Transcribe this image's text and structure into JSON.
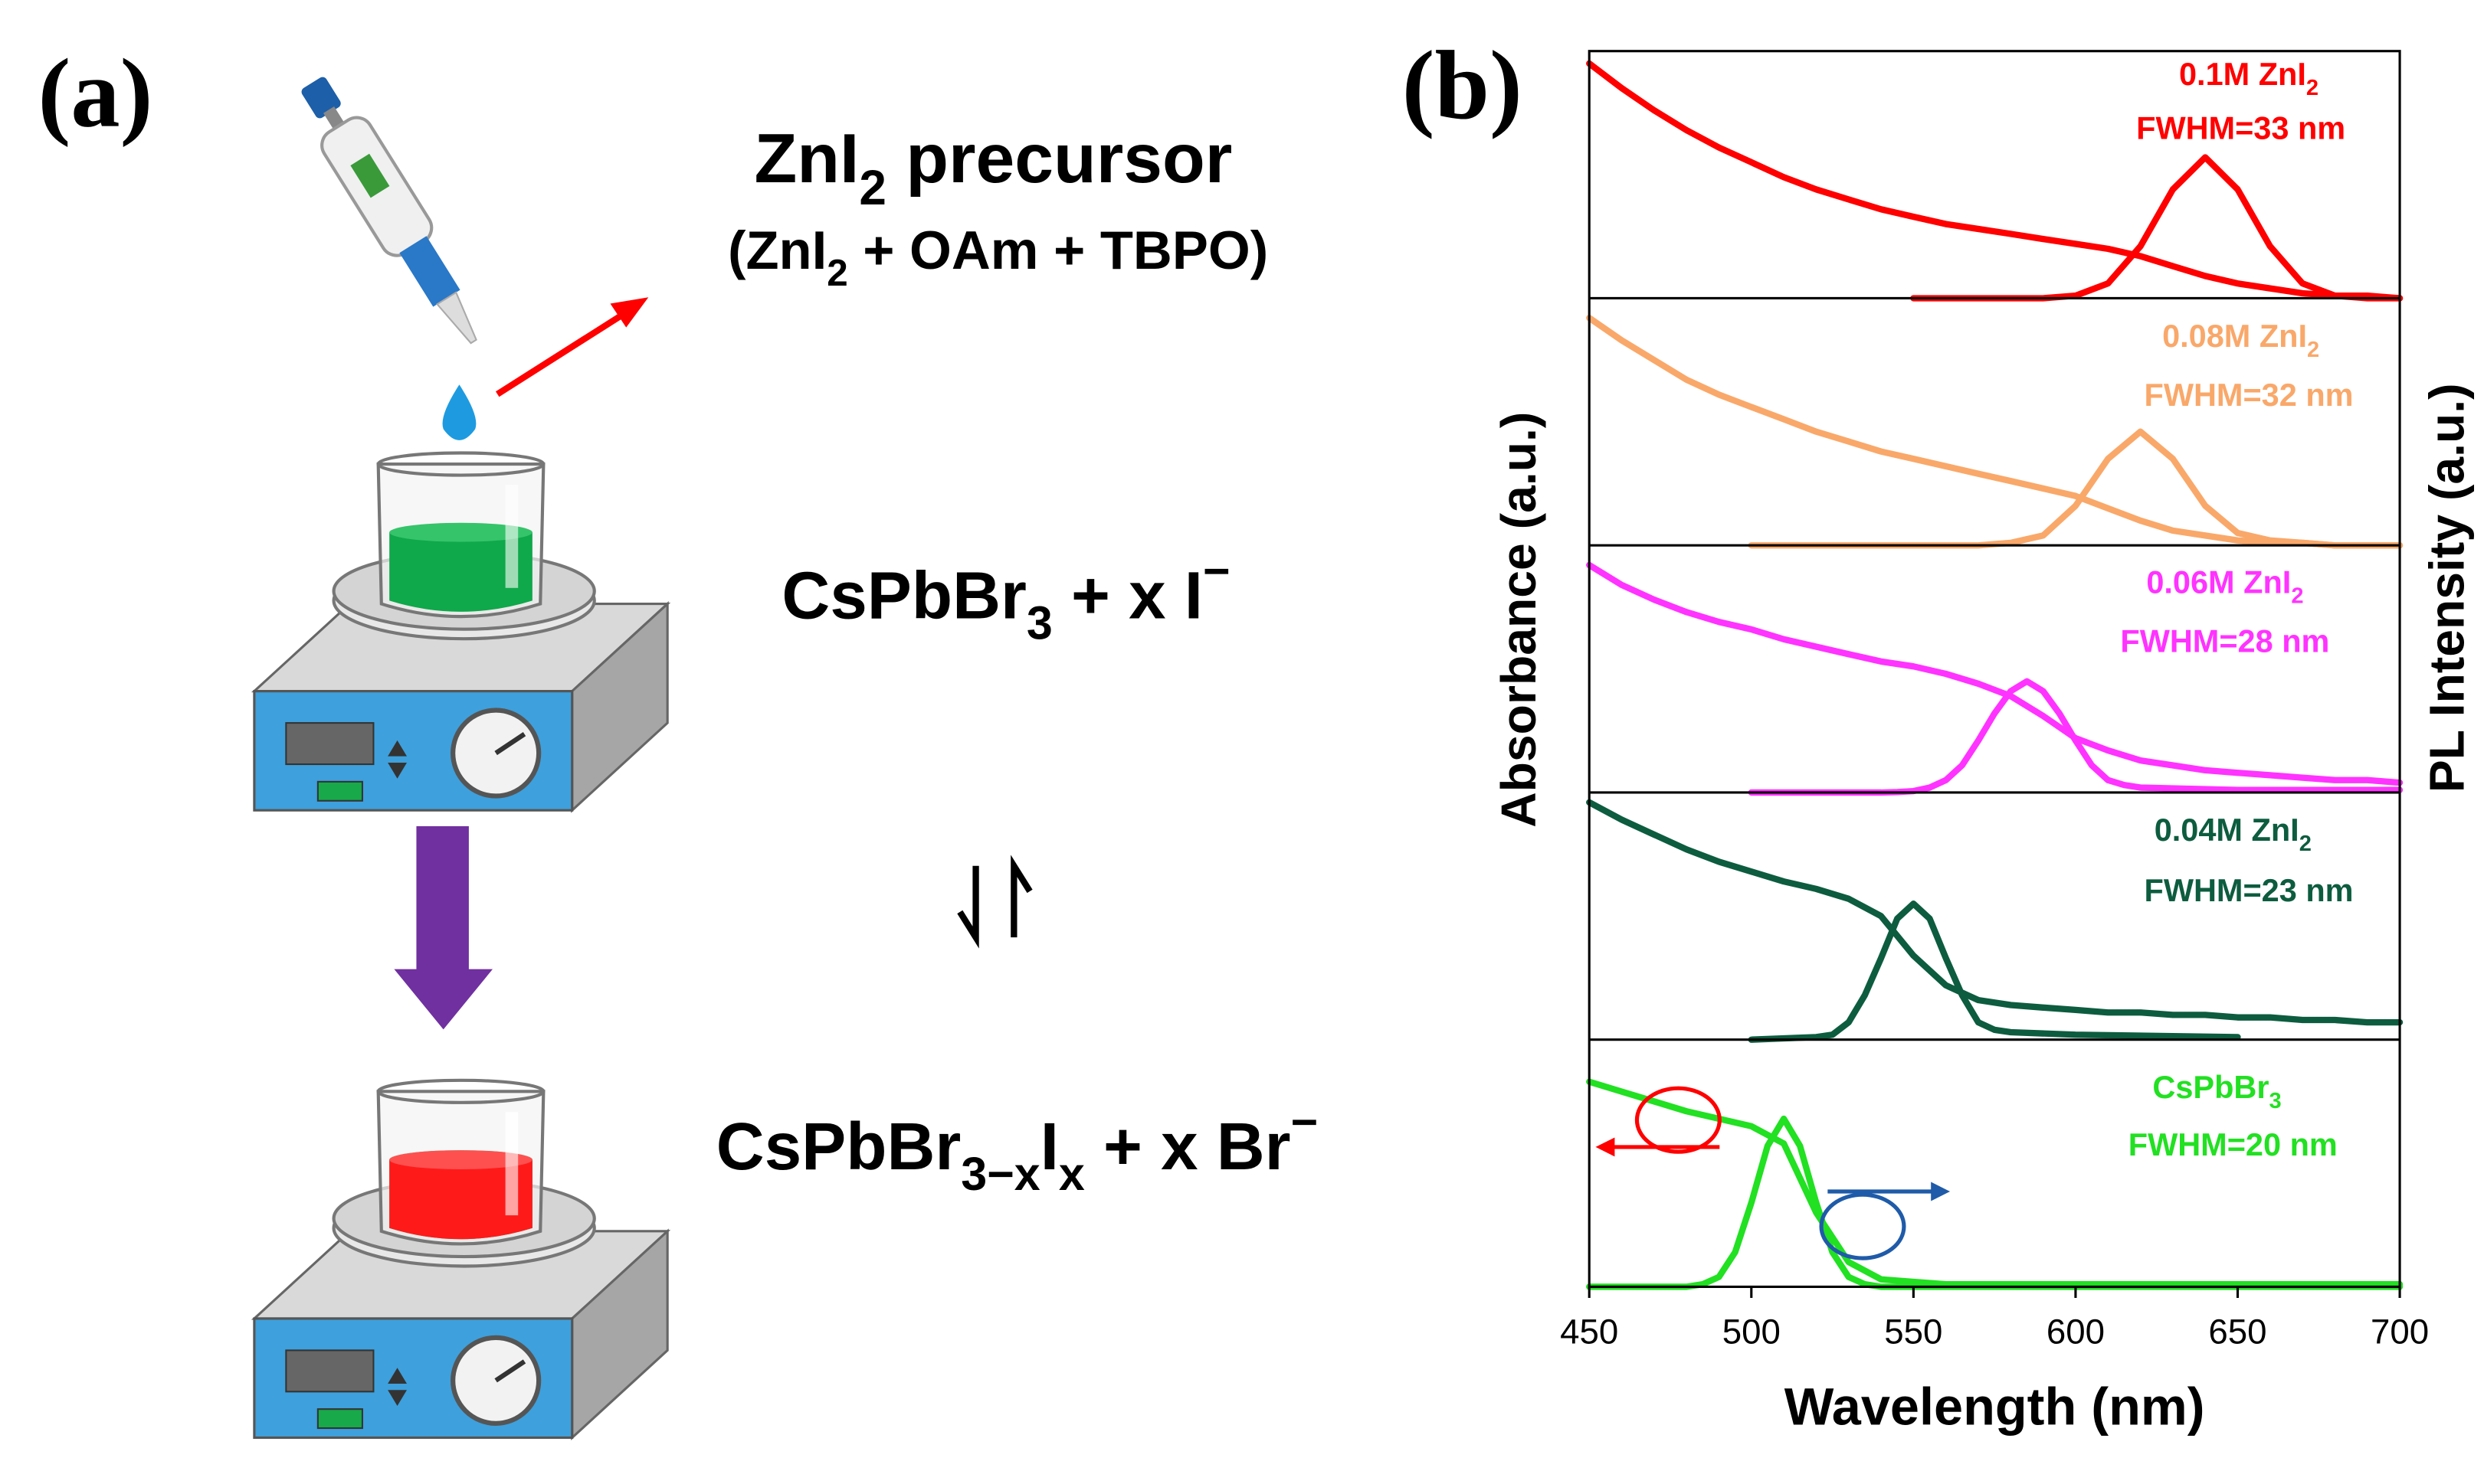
{
  "panel_a": {
    "label": "(a)",
    "precursor": [
      {
        "text": "ZnI"
      },
      {
        "text": "2",
        "script": "sub"
      },
      {
        "text": " precursor"
      }
    ],
    "precursor_mix": [
      {
        "text": "(ZnI"
      },
      {
        "text": "2",
        "script": "sub"
      },
      {
        "text": " + OAm + TBPO)"
      }
    ],
    "reactant": [
      {
        "text": "CsPbBr"
      },
      {
        "text": "3",
        "script": "sub"
      },
      {
        "text": " + x I"
      },
      {
        "text": "−",
        "script": "sup"
      }
    ],
    "product": [
      {
        "text": "CsPbBr"
      },
      {
        "text": "3−x",
        "script": "sub"
      },
      {
        "text": "I"
      },
      {
        "text": "x",
        "script": "sub"
      },
      {
        "text": " + x Br"
      },
      {
        "text": "−",
        "script": "sup"
      }
    ]
  },
  "chart_data": {
    "type": "line",
    "label": "(b)",
    "xlabel": "Wavelength (nm)",
    "ylabel": "Absorbance (a.u.)",
    "y2label": "PL Intensity (a.u.)",
    "xlim": [
      450,
      700
    ],
    "xticks": [
      450,
      500,
      550,
      600,
      650,
      700
    ],
    "ylim": [
      0,
      1
    ],
    "panels": [
      {
        "name": [
          {
            "text": "0.1M ZnI"
          },
          {
            "text": "2",
            "script": "sub"
          }
        ],
        "fwhm": "FWHM=33 nm",
        "color": "#ff0000",
        "absorbance": {
          "x": [
            450,
            460,
            470,
            480,
            490,
            500,
            510,
            520,
            530,
            540,
            550,
            560,
            570,
            580,
            590,
            600,
            610,
            620,
            630,
            640,
            650,
            660,
            670,
            680,
            690,
            700
          ],
          "values": [
            0.95,
            0.85,
            0.76,
            0.68,
            0.61,
            0.55,
            0.49,
            0.44,
            0.4,
            0.36,
            0.33,
            0.3,
            0.28,
            0.26,
            0.24,
            0.22,
            0.2,
            0.17,
            0.13,
            0.09,
            0.06,
            0.04,
            0.02,
            0.01,
            0.01,
            0
          ]
        },
        "pl": {
          "x": [
            550,
            560,
            570,
            580,
            590,
            600,
            610,
            620,
            630,
            640,
            650,
            660,
            670,
            680,
            690,
            700
          ],
          "values": [
            0,
            0,
            0,
            0,
            0,
            0.01,
            0.06,
            0.21,
            0.44,
            0.57,
            0.44,
            0.21,
            0.06,
            0.01,
            0,
            0
          ]
        }
      },
      {
        "name": [
          {
            "text": "0.08M ZnI"
          },
          {
            "text": "2",
            "script": "sub"
          }
        ],
        "fwhm": "FWHM=32 nm",
        "color": "#f9a86a",
        "absorbance": {
          "x": [
            450,
            460,
            470,
            480,
            490,
            500,
            510,
            520,
            530,
            540,
            550,
            560,
            570,
            580,
            590,
            600,
            610,
            620,
            630,
            640,
            650,
            660,
            670,
            680,
            690,
            700
          ],
          "values": [
            0.92,
            0.83,
            0.75,
            0.67,
            0.61,
            0.56,
            0.51,
            0.46,
            0.42,
            0.38,
            0.35,
            0.32,
            0.29,
            0.26,
            0.23,
            0.2,
            0.15,
            0.1,
            0.06,
            0.04,
            0.02,
            0.01,
            0.01,
            0,
            0,
            0
          ]
        },
        "pl": {
          "x": [
            500,
            510,
            520,
            530,
            540,
            550,
            560,
            570,
            580,
            590,
            600,
            610,
            620,
            630,
            640,
            650,
            660,
            670,
            680,
            690,
            700
          ],
          "values": [
            0,
            0,
            0,
            0,
            0,
            0,
            0,
            0,
            0.01,
            0.04,
            0.16,
            0.35,
            0.46,
            0.35,
            0.16,
            0.05,
            0.02,
            0.01,
            0,
            0,
            0
          ]
        }
      },
      {
        "name": [
          {
            "text": "0.06M ZnI"
          },
          {
            "text": "2",
            "script": "sub"
          }
        ],
        "fwhm": "FWHM=28 nm",
        "color": "#ff33ff",
        "absorbance": {
          "x": [
            450,
            460,
            470,
            480,
            490,
            500,
            510,
            520,
            530,
            540,
            550,
            560,
            570,
            580,
            590,
            600,
            610,
            620,
            630,
            640,
            650,
            660,
            670,
            680,
            690,
            700
          ],
          "values": [
            0.92,
            0.84,
            0.78,
            0.73,
            0.69,
            0.66,
            0.62,
            0.59,
            0.56,
            0.53,
            0.51,
            0.48,
            0.44,
            0.39,
            0.31,
            0.22,
            0.17,
            0.13,
            0.11,
            0.09,
            0.08,
            0.07,
            0.06,
            0.05,
            0.05,
            0.04
          ]
        },
        "pl": {
          "x": [
            500,
            540,
            545,
            550,
            555,
            560,
            565,
            570,
            575,
            580,
            585,
            590,
            595,
            600,
            605,
            610,
            615,
            620,
            650,
            700
          ],
          "values": [
            0,
            0,
            0.002,
            0.006,
            0.02,
            0.05,
            0.11,
            0.21,
            0.32,
            0.41,
            0.45,
            0.41,
            0.32,
            0.21,
            0.11,
            0.05,
            0.03,
            0.02,
            0.01,
            0.01
          ]
        }
      },
      {
        "name": [
          {
            "text": "0.04M ZnI"
          },
          {
            "text": "2",
            "script": "sub"
          }
        ],
        "fwhm": "FWHM=23 nm",
        "color": "#0d5c3f",
        "absorbance": {
          "x": [
            450,
            460,
            470,
            480,
            490,
            500,
            510,
            520,
            530,
            540,
            550,
            560,
            570,
            580,
            590,
            600,
            610,
            620,
            630,
            640,
            650,
            660,
            670,
            680,
            690,
            700
          ],
          "values": [
            0.96,
            0.89,
            0.83,
            0.77,
            0.72,
            0.68,
            0.64,
            0.61,
            0.57,
            0.5,
            0.34,
            0.22,
            0.16,
            0.14,
            0.13,
            0.12,
            0.11,
            0.11,
            0.1,
            0.1,
            0.09,
            0.09,
            0.08,
            0.08,
            0.07,
            0.07
          ]
        },
        "pl": {
          "x": [
            500,
            520,
            525,
            530,
            535,
            540,
            545,
            550,
            555,
            560,
            565,
            570,
            575,
            580,
            600,
            650
          ],
          "values": [
            0,
            0.01,
            0.02,
            0.07,
            0.18,
            0.33,
            0.49,
            0.55,
            0.49,
            0.33,
            0.18,
            0.07,
            0.04,
            0.03,
            0.02,
            0.01
          ]
        }
      },
      {
        "name": [
          {
            "text": "CsPbBr"
          },
          {
            "text": "3",
            "script": "sub"
          }
        ],
        "fwhm": "FWHM=20 nm",
        "color": "#22e022",
        "absorbance": {
          "x": [
            450,
            460,
            470,
            480,
            490,
            500,
            510,
            520,
            530,
            540,
            550,
            560,
            570,
            580,
            590,
            600,
            610,
            620,
            630,
            640,
            650,
            660,
            670,
            680,
            690,
            700
          ],
          "values": [
            0.83,
            0.79,
            0.75,
            0.71,
            0.68,
            0.65,
            0.58,
            0.3,
            0.1,
            0.03,
            0.02,
            0.01,
            0.01,
            0.01,
            0.01,
            0.01,
            0.01,
            0.01,
            0.01,
            0.01,
            0.01,
            0.01,
            0.01,
            0.01,
            0.01,
            0.01
          ]
        },
        "pl": {
          "x": [
            450,
            480,
            485,
            490,
            495,
            500,
            505,
            510,
            515,
            520,
            525,
            530,
            535,
            540,
            700
          ],
          "values": [
            0,
            0,
            0.01,
            0.04,
            0.14,
            0.34,
            0.57,
            0.68,
            0.57,
            0.34,
            0.14,
            0.04,
            0.01,
            0,
            0
          ]
        }
      }
    ]
  }
}
